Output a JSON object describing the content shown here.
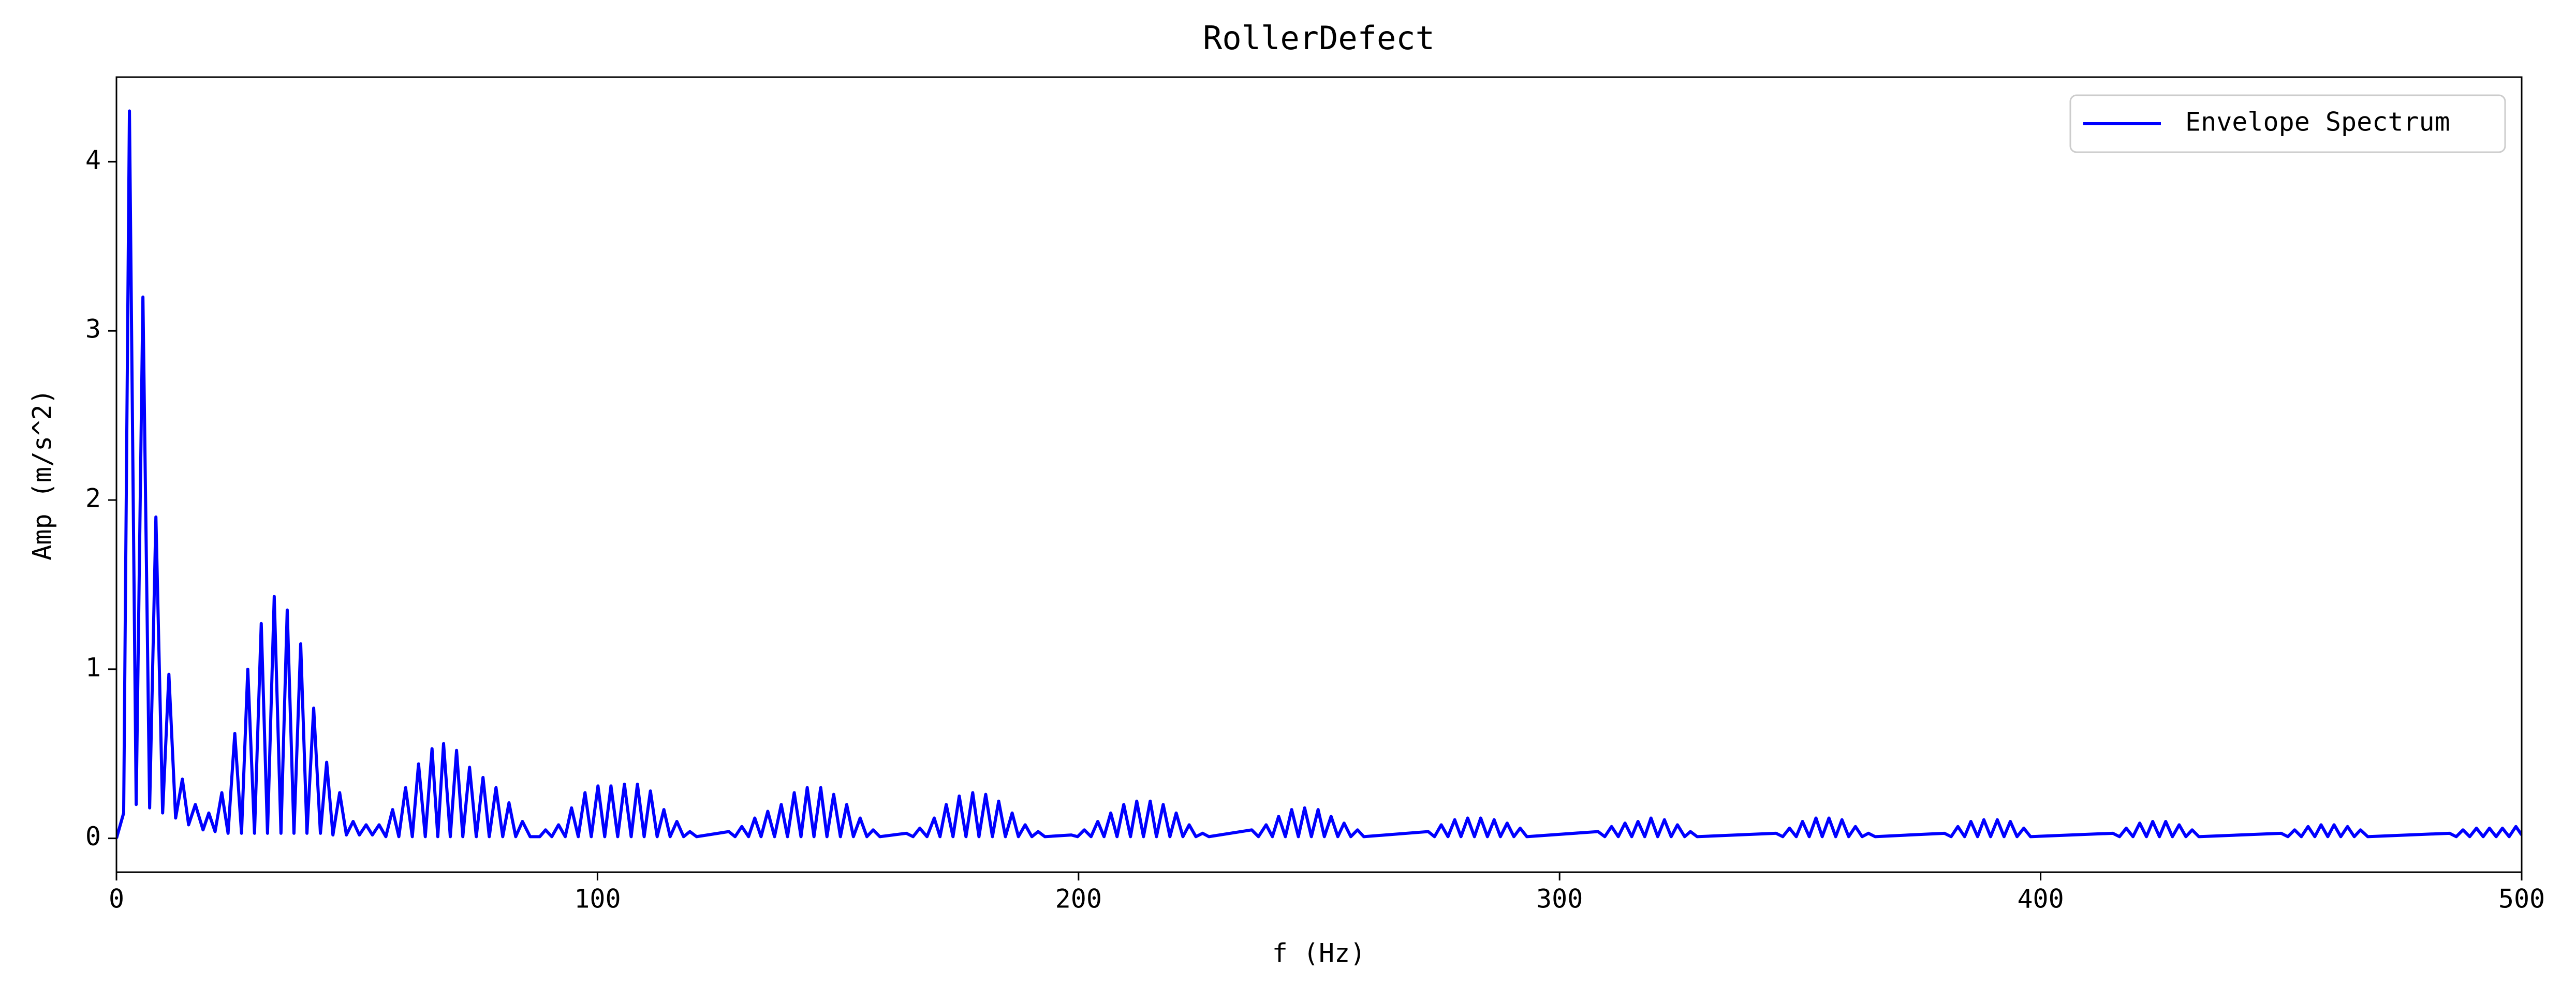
{
  "chart_data": {
    "type": "line",
    "title": "RollerDefect",
    "x_label": "f (Hz)",
    "y_label": "Amp (m/s^2)",
    "xlim": [
      0,
      500
    ],
    "ylim": [
      -0.2,
      4.5
    ],
    "xticks": [
      0,
      100,
      200,
      300,
      400,
      500
    ],
    "yticks": [
      0,
      1,
      2,
      3,
      4
    ],
    "grid": false,
    "legend": "upper right",
    "x": [
      0,
      1.5,
      2.7,
      4.1,
      5.5,
      6.9,
      8.2,
      9.6,
      10.9,
      12.3,
      13.7,
      15,
      16.4,
      18,
      19.2,
      20.5,
      21.9,
      23.2,
      24.6,
      26,
      27.3,
      28.7,
      30.1,
      31.4,
      32.8,
      34.2,
      35.5,
      36.9,
      38.3,
      39.6,
      41,
      42.4,
      43.7,
      45,
      46.4,
      47.8,
      49.2,
      50.5,
      51.9,
      53.2,
      54.6,
      56,
      57.4,
      58.7,
      60.1,
      61.5,
      62.8,
      64.2,
      65.6,
      66.8,
      68,
      69.4,
      70.7,
      72,
      73.4,
      74.8,
      76.2,
      77.5,
      78.9,
      80.3,
      81.6,
      83,
      84.4,
      86,
      88,
      89.2,
      90.5,
      91.9,
      93.3,
      94.6,
      96,
      97.4,
      98.7,
      100.1,
      101.5,
      102.8,
      104.2,
      105.6,
      107,
      108.3,
      109.7,
      111,
      112.4,
      113.8,
      115.1,
      116.5,
      117.9,
      119.2,
      120.6,
      127.3,
      128.6,
      130,
      131.4,
      132.7,
      134,
      135.4,
      136.8,
      138.2,
      139.5,
      140.9,
      142.3,
      143.6,
      145,
      146.4,
      147.7,
      149.1,
      150.5,
      151.8,
      153.2,
      154.6,
      156,
      157.3,
      158.7,
      164.2,
      165.6,
      167,
      168.5,
      170,
      171.2,
      172.5,
      173.9,
      175.2,
      176.6,
      178,
      179.3,
      180.7,
      182.1,
      183.4,
      184.8,
      186.2,
      187.5,
      188.9,
      190.3,
      191.6,
      193,
      198.5,
      199.8,
      201.2,
      202.6,
      204,
      205.3,
      206.7,
      208,
      209.4,
      210.8,
      212.1,
      213.5,
      214.9,
      216.2,
      217.6,
      219,
      220.3,
      221.7,
      223,
      224.4,
      225.8,
      227.1,
      236,
      237.4,
      239,
      240.3,
      241.6,
      243,
      244.3,
      245.7,
      247,
      248.4,
      249.8,
      251.1,
      252.5,
      253.9,
      255.2,
      256.6,
      258,
      259.3,
      272.7,
      274,
      275.4,
      276.8,
      278.2,
      279.5,
      280.9,
      282.3,
      283.6,
      285,
      286.4,
      287.7,
      289.1,
      290.5,
      291.8,
      293.2,
      308,
      309.4,
      310.8,
      312.2,
      313.6,
      315,
      316.3,
      317.7,
      319,
      320.4,
      321.8,
      323.2,
      324.5,
      326,
      327.2,
      328.6,
      345,
      346.4,
      347.8,
      349.2,
      350.5,
      351.9,
      353.3,
      354.6,
      356,
      357.4,
      358.7,
      360.1,
      361.5,
      362.9,
      364.2,
      365.6,
      380,
      381.4,
      382.8,
      384.2,
      385.5,
      386.9,
      388.2,
      389.6,
      391,
      392.4,
      393.7,
      395.1,
      396.5,
      397.9,
      415,
      416.4,
      417.8,
      419.2,
      420.6,
      422,
      423.3,
      424.7,
      426,
      427.4,
      428.8,
      430.2,
      431.5,
      432.9,
      450,
      451.4,
      452.8,
      454.2,
      455.6,
      457,
      458.3,
      459.7,
      461,
      462.4,
      463.8,
      465.2,
      466.5,
      468,
      485,
      486.4,
      487.8,
      489.2,
      490.6,
      492,
      493.3,
      494.7,
      496,
      497.4,
      498.8,
      500
    ],
    "series": [
      {
        "name": "Envelope Spectrum",
        "color": "#0000ff",
        "values": [
          0,
          0.15,
          4.3,
          0.2,
          3.2,
          0.18,
          1.9,
          0.15,
          0.97,
          0.12,
          0.35,
          0.08,
          0.2,
          0.05,
          0.15,
          0.04,
          0.27,
          0.03,
          0.62,
          0.03,
          1.0,
          0.03,
          1.27,
          0.03,
          1.43,
          0.03,
          1.35,
          0.03,
          1.15,
          0.03,
          0.77,
          0.03,
          0.45,
          0.02,
          0.27,
          0.02,
          0.1,
          0.02,
          0.08,
          0.02,
          0.08,
          0.01,
          0.17,
          0.01,
          0.3,
          0.01,
          0.44,
          0.01,
          0.53,
          0.01,
          0.56,
          0.01,
          0.52,
          0.01,
          0.42,
          0.01,
          0.36,
          0.01,
          0.3,
          0.01,
          0.21,
          0.01,
          0.1,
          0.01,
          0.01,
          0.05,
          0.01,
          0.08,
          0.01,
          0.18,
          0.01,
          0.27,
          0.01,
          0.31,
          0.01,
          0.31,
          0.01,
          0.32,
          0.01,
          0.32,
          0.01,
          0.28,
          0.01,
          0.17,
          0.01,
          0.1,
          0.01,
          0.04,
          0.01,
          0.04,
          0.01,
          0.07,
          0.01,
          0.12,
          0.01,
          0.16,
          0.01,
          0.2,
          0.01,
          0.27,
          0.01,
          0.3,
          0.01,
          0.3,
          0.01,
          0.26,
          0.01,
          0.2,
          0.01,
          0.12,
          0.01,
          0.05,
          0.01,
          0.03,
          0.01,
          0.06,
          0.01,
          0.12,
          0.01,
          0.2,
          0.01,
          0.25,
          0.01,
          0.27,
          0.01,
          0.26,
          0.01,
          0.22,
          0.01,
          0.15,
          0.01,
          0.08,
          0.01,
          0.04,
          0.01,
          0.02,
          0.01,
          0.05,
          0.01,
          0.1,
          0.01,
          0.15,
          0.01,
          0.2,
          0.01,
          0.22,
          0.01,
          0.22,
          0.01,
          0.2,
          0.01,
          0.15,
          0.01,
          0.08,
          0.01,
          0.03,
          0.01,
          0.05,
          0.01,
          0.08,
          0.01,
          0.13,
          0.01,
          0.17,
          0.01,
          0.18,
          0.01,
          0.17,
          0.01,
          0.13,
          0.01,
          0.09,
          0.01,
          0.05,
          0.01,
          0.04,
          0.01,
          0.08,
          0.01,
          0.11,
          0.01,
          0.12,
          0.01,
          0.12,
          0.01,
          0.11,
          0.01,
          0.09,
          0.01,
          0.06,
          0.01,
          0.04,
          0.01,
          0.07,
          0.01,
          0.09,
          0.01,
          0.1,
          0.01,
          0.12,
          0.01,
          0.11,
          0.01,
          0.08,
          0.01,
          0.04,
          0.01,
          0.03,
          0.01,
          0.06,
          0.01,
          0.1,
          0.01,
          0.12,
          0.01,
          0.12,
          0.01,
          0.11,
          0.01,
          0.07,
          0.01,
          0.03,
          0.01,
          0.03,
          0.01,
          0.07,
          0.01,
          0.1,
          0.01,
          0.11,
          0.01,
          0.11,
          0.01,
          0.1,
          0.01,
          0.06,
          0.01,
          0.03,
          0.01,
          0.06,
          0.01,
          0.09,
          0.01,
          0.1,
          0.01,
          0.1,
          0.01,
          0.08,
          0.01,
          0.05,
          0.01,
          0.03,
          0.01,
          0.05,
          0.01,
          0.07,
          0.01,
          0.08,
          0.01,
          0.08,
          0.01,
          0.07,
          0.01,
          0.05,
          0.01,
          0.03,
          0.01,
          0.05,
          0.01,
          0.06,
          0.01,
          0.06,
          0.01,
          0.06,
          0.01,
          0.07,
          0.02
        ]
      }
    ]
  }
}
